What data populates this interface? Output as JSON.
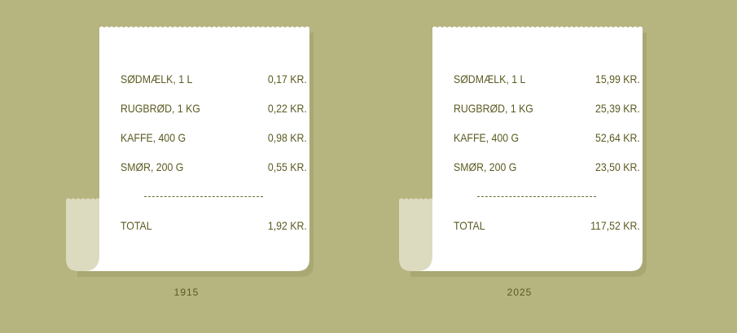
{
  "colors": {
    "background": "#b6b47f",
    "paper": "#ffffff",
    "curl": "#dcdbbf",
    "shadow": "#a9a873",
    "text": "#5b5a22"
  },
  "receipts": [
    {
      "year": "1915",
      "items": [
        {
          "label": "SØDMÆLK, 1 L",
          "price": "0,17 KR."
        },
        {
          "label": "RUGBRØD, 1 KG",
          "price": "0,22 KR."
        },
        {
          "label": "KAFFE, 400 G",
          "price": "0,98 KR."
        },
        {
          "label": "SMØR, 200 G",
          "price": "0,55 KR."
        }
      ],
      "total_label": "TOTAL",
      "total": "1,92 KR."
    },
    {
      "year": "2025",
      "items": [
        {
          "label": "SØDMÆLK, 1 L",
          "price": "15,99 KR."
        },
        {
          "label": "RUGBRØD, 1 KG",
          "price": "25,39 KR."
        },
        {
          "label": "KAFFE, 400 G",
          "price": "52,64 KR."
        },
        {
          "label": "SMØR, 200 G",
          "price": "23,50 KR."
        }
      ],
      "total_label": "TOTAL",
      "total": "117,52 KR."
    }
  ]
}
